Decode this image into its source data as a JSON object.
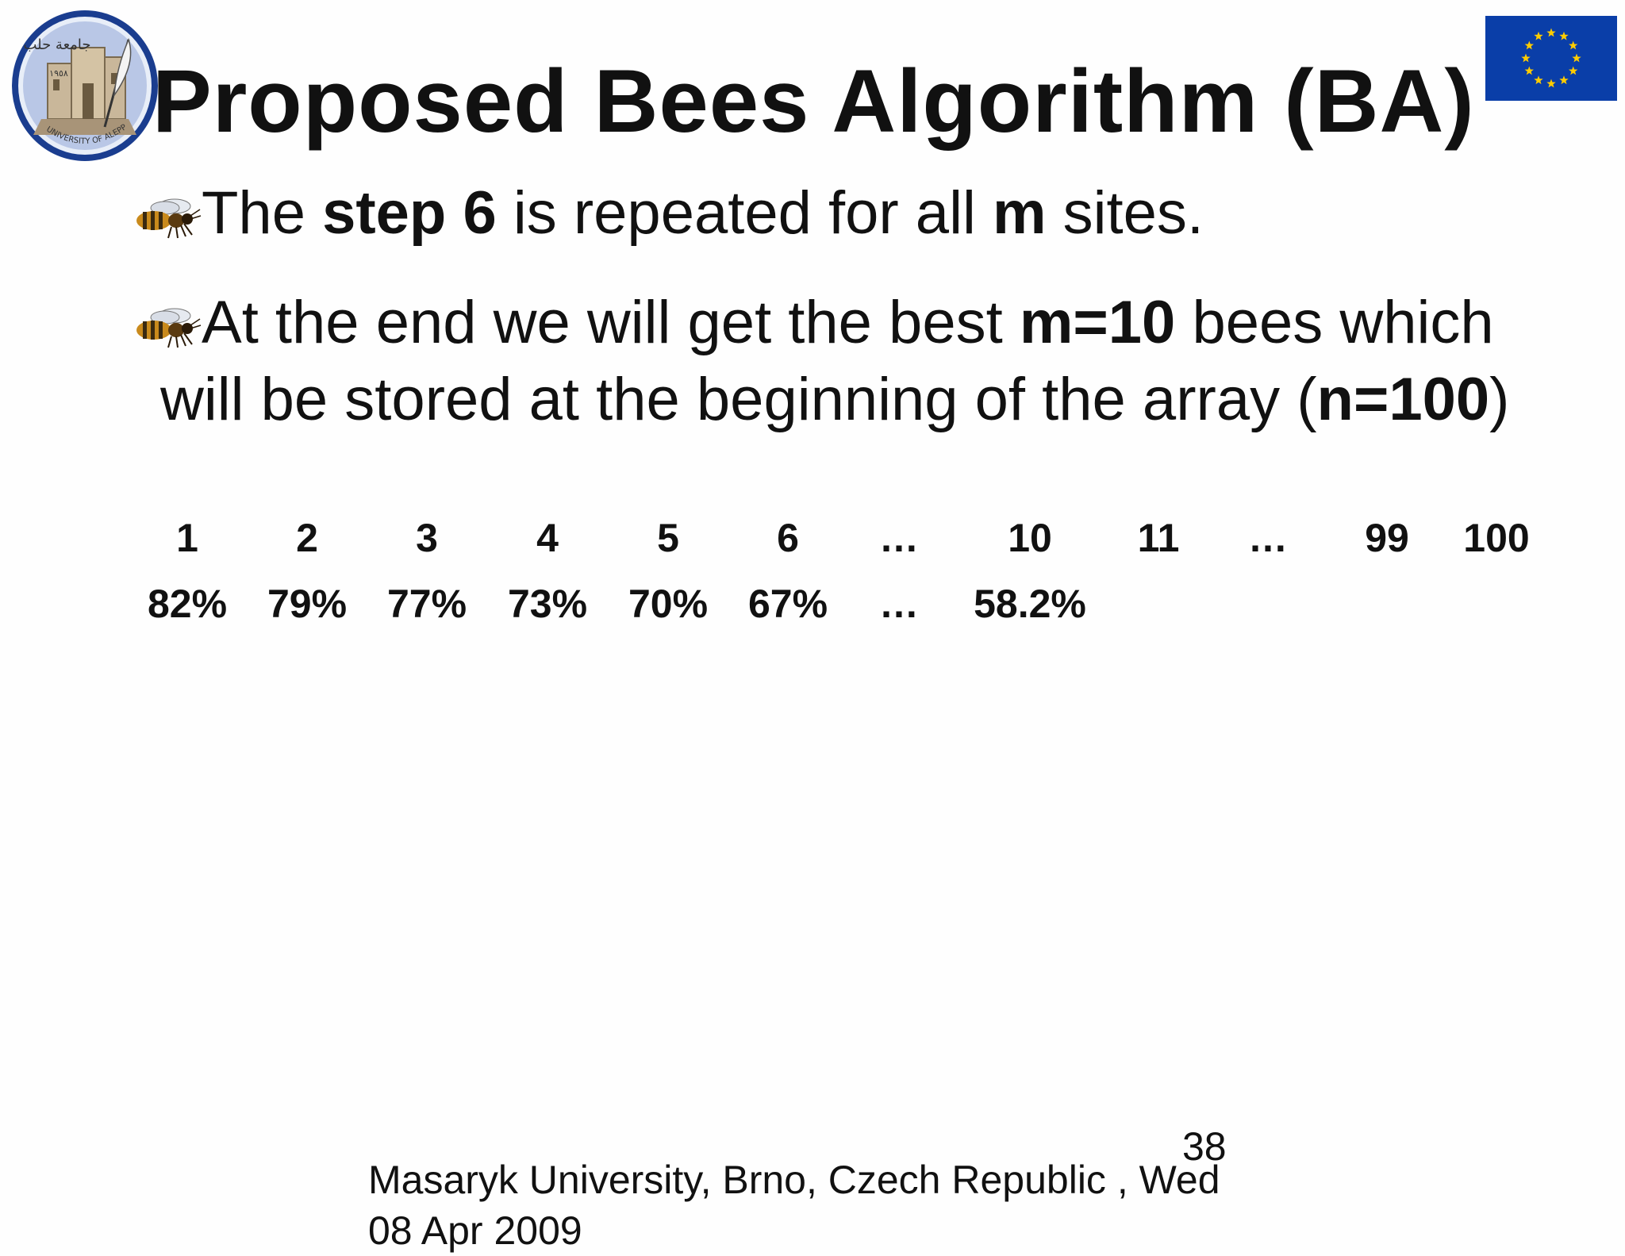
{
  "slide": {
    "title": "Proposed Bees Algorithm (BA)",
    "bullets": [
      {
        "parts": [
          "The ",
          "step 6",
          " is repeated for all ",
          "m",
          " sites."
        ]
      },
      {
        "line1_parts": [
          "At the end we will get the best ",
          "m=10",
          " bees which"
        ],
        "line2_parts": [
          "will be stored at the beginning of the array (",
          "n=100",
          ")"
        ]
      }
    ],
    "array_table": {
      "indices": [
        "1",
        "2",
        "3",
        "4",
        "5",
        "6",
        "…",
        "10",
        "11",
        "…",
        "99",
        "100"
      ],
      "values": [
        "82%",
        "79%",
        "77%",
        "73%",
        "70%",
        "67%",
        "…",
        "58.2%"
      ]
    },
    "page_number": "38",
    "footer": "Masaryk University, Brno, Czech Republic , Wed 08 Apr 2009"
  },
  "logo": {
    "icon": "university-of-aleppo-seal-icon",
    "arabic_text": "جامعة حلب",
    "year": "١٩٥٨",
    "latin_text": "UNIVERSITY OF ALEPPO",
    "colors": {
      "ring": "#1a3d8f",
      "inner": "#b9c7e6",
      "castle": "#c9b79a"
    }
  },
  "flag": {
    "icon": "eu-flag-icon",
    "colors": {
      "field": "#0a3ea8",
      "stars": "#ffcc00"
    }
  },
  "bullet_icon": "honeybee-icon"
}
